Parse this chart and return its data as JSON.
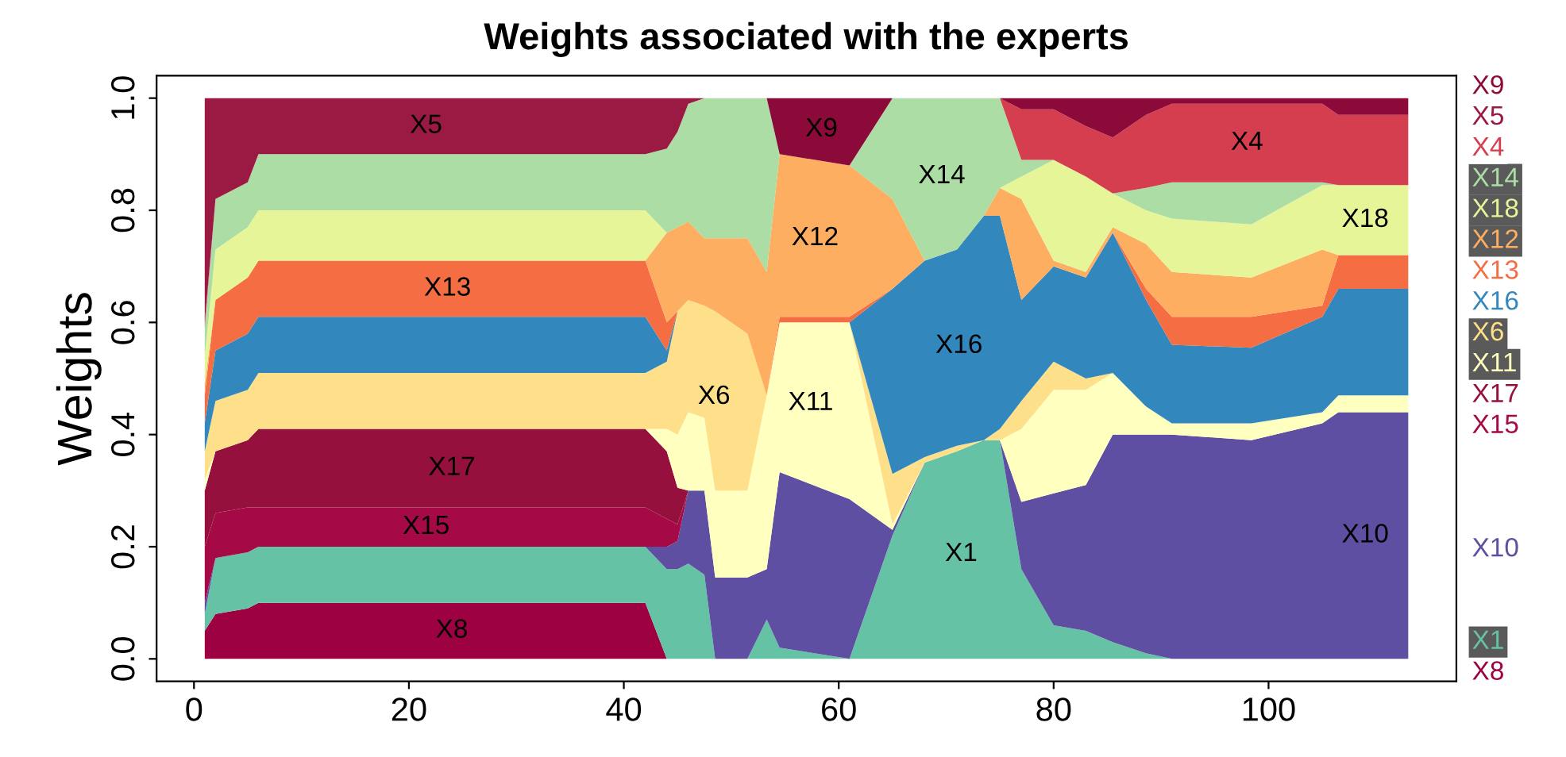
{
  "chart_data": {
    "type": "area",
    "stacked": true,
    "title": "Weights associated with the experts",
    "ylabel": "Weights",
    "x": [
      1,
      2,
      5,
      6,
      41,
      42,
      44,
      45,
      46,
      47.5,
      48.5,
      51.5,
      53.3,
      54.5,
      61,
      65,
      68,
      71,
      73.5,
      75,
      77,
      80,
      83,
      85.5,
      88.6,
      91,
      98.4,
      105,
      106.5,
      113
    ],
    "series": [
      {
        "name": "X8",
        "color": "#9e0142",
        "values": [
          0.05,
          0.08,
          0.09,
          0.1,
          0.1,
          0.1,
          0,
          0,
          0,
          0,
          0,
          0,
          0,
          0,
          0,
          0,
          0,
          0,
          0,
          0,
          0,
          0,
          0,
          0,
          0,
          0,
          0,
          0,
          0,
          0
        ]
      },
      {
        "name": "X1",
        "color": "#66c2a5",
        "values": [
          0.03,
          0.1,
          0.1,
          0.1,
          0.1,
          0.1,
          0.16,
          0.16,
          0.17,
          0.15,
          0,
          0,
          0.07,
          0.02,
          0,
          0.22,
          0.35,
          0.37,
          0.39,
          0.39,
          0.16,
          0.06,
          0.05,
          0.03,
          0.01,
          0,
          0,
          0,
          0,
          0
        ]
      },
      {
        "name": "X10",
        "color": "#5e4fa2",
        "values": [
          0.02,
          0,
          0,
          0,
          0,
          0,
          0.04,
          0.05,
          0.13,
          0.15,
          0.145,
          0.145,
          0.09,
          0.313,
          0.285,
          0.01,
          0,
          0,
          0,
          0,
          0.12,
          0.235,
          0.26,
          0.37,
          0.39,
          0.4,
          0.39,
          0.42,
          0.44,
          0.44
        ]
      },
      {
        "name": "X15",
        "color": "#a50a47",
        "values": [
          0.1,
          0.08,
          0.08,
          0.07,
          0.07,
          0.07,
          0.05,
          0.03,
          0,
          0,
          0,
          0,
          0,
          0,
          0,
          0,
          0,
          0,
          0,
          0,
          0,
          0,
          0,
          0,
          0,
          0,
          0,
          0,
          0,
          0
        ]
      },
      {
        "name": "X17",
        "color": "#96103e",
        "values": [
          0.1,
          0.11,
          0.12,
          0.14,
          0.14,
          0.14,
          0.12,
          0.065,
          0,
          0,
          0,
          0,
          0,
          0,
          0,
          0,
          0,
          0,
          0,
          0,
          0,
          0,
          0,
          0,
          0,
          0,
          0,
          0,
          0,
          0
        ]
      },
      {
        "name": "X11",
        "color": "#ffffbf",
        "values": [
          0.02,
          0,
          0,
          0,
          0,
          0,
          0.04,
          0.095,
          0.14,
          0.13,
          0.155,
          0.155,
          0.31,
          0.267,
          0.315,
          0.01,
          0,
          0,
          0,
          0,
          0.13,
          0.185,
          0.17,
          0.11,
          0.05,
          0.02,
          0.03,
          0.02,
          0.03,
          0.03
        ]
      },
      {
        "name": "X6",
        "color": "#fee08b",
        "values": [
          0.05,
          0.09,
          0.09,
          0.1,
          0.1,
          0.1,
          0.12,
          0.22,
          0.2,
          0.2,
          0.32,
          0.28,
          0,
          0,
          0,
          0.09,
          0.01,
          0.01,
          0,
          0.02,
          0.05,
          0.05,
          0.02,
          0,
          0,
          0,
          0,
          0,
          0,
          0
        ]
      },
      {
        "name": "X16",
        "color": "#3288bd",
        "values": [
          0.05,
          0.09,
          0.1,
          0.1,
          0.1,
          0.1,
          0.02,
          0,
          0,
          0,
          0,
          0,
          0,
          0,
          0,
          0.33,
          0.35,
          0.35,
          0.4,
          0.38,
          0.18,
          0.17,
          0.18,
          0.25,
          0.19,
          0.14,
          0.135,
          0.17,
          0.19,
          0.19
        ]
      },
      {
        "name": "X13",
        "color": "#f46d43",
        "values": [
          0.05,
          0.09,
          0.1,
          0.1,
          0.1,
          0.1,
          0.05,
          0,
          0,
          0,
          0,
          0,
          0,
          0.01,
          0.01,
          0,
          0,
          0,
          0,
          0,
          0,
          0,
          0,
          0,
          0.02,
          0.05,
          0.055,
          0.02,
          0.06,
          0.06
        ]
      },
      {
        "name": "X12",
        "color": "#fdae61",
        "values": [
          0.02,
          0,
          0,
          0,
          0,
          0,
          0.16,
          0.15,
          0.14,
          0.12,
          0.13,
          0.17,
          0.22,
          0.29,
          0.27,
          0.16,
          0,
          0,
          0,
          0.05,
          0.18,
          0.01,
          0.01,
          0.01,
          0.08,
          0.08,
          0.07,
          0.1,
          0,
          0
        ]
      },
      {
        "name": "X18",
        "color": "#e6f598",
        "values": [
          0.05,
          0.09,
          0.09,
          0.09,
          0.09,
          0.09,
          0,
          0,
          0,
          0,
          0,
          0,
          0,
          0,
          0,
          0,
          0,
          0,
          0,
          0,
          0.04,
          0.18,
          0.17,
          0.06,
          0.06,
          0.095,
          0.095,
          0.115,
          0.125,
          0.125
        ]
      },
      {
        "name": "X14",
        "color": "#abdda4",
        "values": [
          0.05,
          0.09,
          0.08,
          0.1,
          0.1,
          0.1,
          0.15,
          0.17,
          0.21,
          0.25,
          0.25,
          0.25,
          0.31,
          0,
          0,
          0.18,
          0.29,
          0.27,
          0.21,
          0.16,
          0.03,
          0,
          0,
          0,
          0.04,
          0.065,
          0.075,
          0.005,
          0,
          0
        ]
      },
      {
        "name": "X4",
        "color": "#d53e4f",
        "values": [
          0.01,
          0,
          0,
          0,
          0,
          0,
          0,
          0,
          0,
          0,
          0,
          0,
          0,
          0,
          0,
          0,
          0,
          0,
          0,
          0,
          0.09,
          0.09,
          0.09,
          0.1,
          0.13,
          0.14,
          0.14,
          0.14,
          0.125,
          0.125
        ]
      },
      {
        "name": "X5",
        "color": "#9a1a44",
        "values": [
          0.4,
          0.18,
          0.15,
          0.1,
          0.1,
          0.1,
          0.09,
          0.06,
          0.01,
          0,
          0,
          0,
          0,
          0,
          0,
          0,
          0,
          0,
          0,
          0,
          0,
          0,
          0,
          0,
          0,
          0,
          0,
          0,
          0,
          0
        ]
      },
      {
        "name": "X9",
        "color": "#8c0a3a",
        "values": [
          0,
          0,
          0,
          0,
          0,
          0,
          0,
          0,
          0,
          0,
          0,
          0,
          0,
          0.1,
          0.12,
          0,
          0,
          0,
          0,
          0,
          0.02,
          0.02,
          0.05,
          0.07,
          0.03,
          0.01,
          0.01,
          0.01,
          0.03,
          0.03
        ]
      }
    ],
    "xlim": [
      -3.48,
      117.48
    ],
    "ylim": [
      -0.04,
      1.04
    ],
    "xticks": [
      0,
      20,
      40,
      60,
      80,
      100
    ],
    "yticks": [
      {
        "value": 0,
        "label": "0.0"
      },
      {
        "value": 0.2,
        "label": "0.2"
      },
      {
        "value": 0.4,
        "label": "0.4"
      },
      {
        "value": 0.6,
        "label": "0.6"
      },
      {
        "value": 0.8,
        "label": "0.8"
      },
      {
        "value": 1,
        "label": "1.0"
      }
    ],
    "grid": false,
    "legend": false
  }
}
